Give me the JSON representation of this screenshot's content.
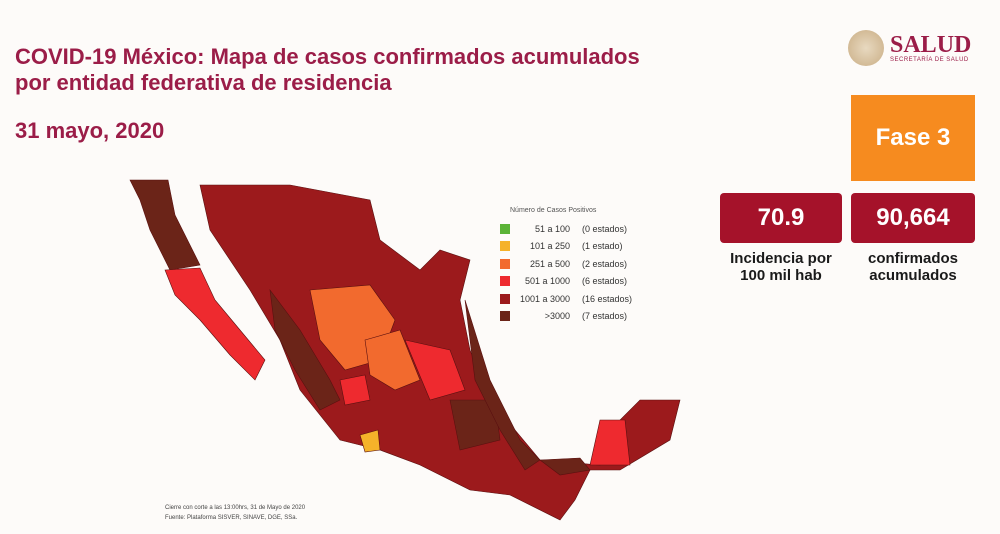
{
  "header": {
    "title_line1": "COVID-19 México: Mapa de casos confirmados acumulados",
    "title_line2": "por entidad federativa de residencia",
    "date": "31 mayo, 2020"
  },
  "logo": {
    "name": "SALUD",
    "subtitle": "SECRETARÍA DE SALUD"
  },
  "phase": "Fase 3",
  "stats": [
    {
      "value": "70.9",
      "caption_line1": "Incidencia por",
      "caption_line2": "100 mil hab"
    },
    {
      "value": "90,664",
      "caption_line1": "confirmados",
      "caption_line2": "acumulados"
    }
  ],
  "legend": {
    "title": "Número de Casos Positivos",
    "items": [
      {
        "range": "51 a 100",
        "count": "(0 estados)",
        "color": "#5bb337"
      },
      {
        "range": "101 a 250",
        "count": "(1 estado)",
        "color": "#f5b22a"
      },
      {
        "range": "251 a 500",
        "count": "(2 estados)",
        "color": "#f26a2e"
      },
      {
        "range": "501 a 1000",
        "count": "(6 estados)",
        "color": "#ee2a2f"
      },
      {
        "range": "1001 a 3000",
        "count": "(16 estados)",
        "color": "#9c1a1c"
      },
      {
        "range": ">3000",
        "count": "(7 estados)",
        "color": "#6b2418"
      }
    ]
  },
  "footer": {
    "line1": "Cierre con corte a las 13:00hrs, 31 de Mayo de 2020",
    "line2": "Fuente: Plataforma SISVER, SINAVE, DGE, SSa."
  }
}
